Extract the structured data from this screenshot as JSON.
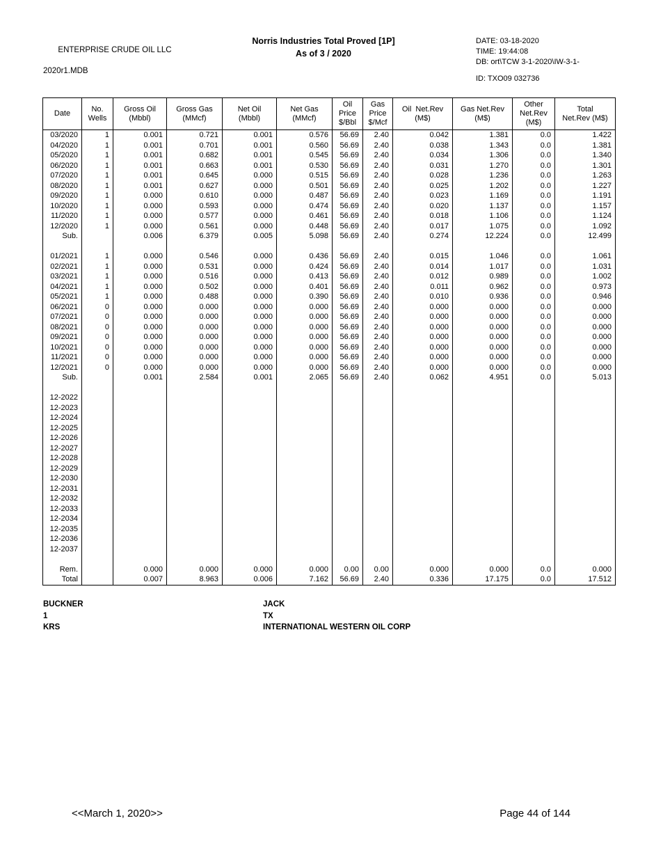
{
  "header": {
    "company": "ENTERPRISE CRUDE OIL LLC",
    "db_file": "2020r1.MDB",
    "title_line1": "Norris Industries Total Proved [1P]",
    "title_line2": "As of 3 / 2020",
    "meta_date": "DATE: 03-18-2020",
    "meta_time": "TIME: 19:44:08",
    "meta_db": "DB: ort\\TCW 3-1-2020\\IW-3-1-",
    "meta_id": "ID: TXO09 032736"
  },
  "table": {
    "headers": [
      [
        "Date"
      ],
      [
        "No.",
        "Wells"
      ],
      [
        "Gross Oil",
        "(Mbbl)"
      ],
      [
        "Gross Gas",
        "(MMcf)"
      ],
      [
        "Net Oil",
        "(Mbbl)"
      ],
      [
        "Net Gas",
        "(MMcf)"
      ],
      [
        "Oil",
        "Price",
        "$/Bbl"
      ],
      [
        "Gas",
        "Price",
        "$/Mcf"
      ],
      [
        "Oil  Net.Rev",
        "(M$)"
      ],
      [
        "Gas Net.Rev",
        "(M$)"
      ],
      [
        "Other",
        "Net.Rev",
        "(M$)"
      ],
      [
        "Total",
        "Net.Rev (M$)"
      ]
    ],
    "rows": [
      [
        "03/2020",
        "1",
        "0.001",
        "0.721",
        "0.001",
        "0.576",
        "56.69",
        "2.40",
        "0.042",
        "1.381",
        "0.0",
        "1.422"
      ],
      [
        "04/2020",
        "1",
        "0.001",
        "0.701",
        "0.001",
        "0.560",
        "56.69",
        "2.40",
        "0.038",
        "1.343",
        "0.0",
        "1.381"
      ],
      [
        "05/2020",
        "1",
        "0.001",
        "0.682",
        "0.001",
        "0.545",
        "56.69",
        "2.40",
        "0.034",
        "1.306",
        "0.0",
        "1.340"
      ],
      [
        "06/2020",
        "1",
        "0.001",
        "0.663",
        "0.001",
        "0.530",
        "56.69",
        "2.40",
        "0.031",
        "1.270",
        "0.0",
        "1.301"
      ],
      [
        "07/2020",
        "1",
        "0.001",
        "0.645",
        "0.000",
        "0.515",
        "56.69",
        "2.40",
        "0.028",
        "1.236",
        "0.0",
        "1.263"
      ],
      [
        "08/2020",
        "1",
        "0.001",
        "0.627",
        "0.000",
        "0.501",
        "56.69",
        "2.40",
        "0.025",
        "1.202",
        "0.0",
        "1.227"
      ],
      [
        "09/2020",
        "1",
        "0.000",
        "0.610",
        "0.000",
        "0.487",
        "56.69",
        "2.40",
        "0.023",
        "1.169",
        "0.0",
        "1.191"
      ],
      [
        "10/2020",
        "1",
        "0.000",
        "0.593",
        "0.000",
        "0.474",
        "56.69",
        "2.40",
        "0.020",
        "1.137",
        "0.0",
        "1.157"
      ],
      [
        "11/2020",
        "1",
        "0.000",
        "0.577",
        "0.000",
        "0.461",
        "56.69",
        "2.40",
        "0.018",
        "1.106",
        "0.0",
        "1.124"
      ],
      [
        "12/2020",
        "1",
        "0.000",
        "0.561",
        "0.000",
        "0.448",
        "56.69",
        "2.40",
        "0.017",
        "1.075",
        "0.0",
        "1.092"
      ],
      [
        "Sub.",
        "",
        "0.006",
        "6.379",
        "0.005",
        "5.098",
        "56.69",
        "2.40",
        "0.274",
        "12.224",
        "0.0",
        "12.499"
      ],
      [
        "",
        "",
        "",
        "",
        "",
        "",
        "",
        "",
        "",
        "",
        "",
        ""
      ],
      [
        "01/2021",
        "1",
        "0.000",
        "0.546",
        "0.000",
        "0.436",
        "56.69",
        "2.40",
        "0.015",
        "1.046",
        "0.0",
        "1.061"
      ],
      [
        "02/2021",
        "1",
        "0.000",
        "0.531",
        "0.000",
        "0.424",
        "56.69",
        "2.40",
        "0.014",
        "1.017",
        "0.0",
        "1.031"
      ],
      [
        "03/2021",
        "1",
        "0.000",
        "0.516",
        "0.000",
        "0.413",
        "56.69",
        "2.40",
        "0.012",
        "0.989",
        "0.0",
        "1.002"
      ],
      [
        "04/2021",
        "1",
        "0.000",
        "0.502",
        "0.000",
        "0.401",
        "56.69",
        "2.40",
        "0.011",
        "0.962",
        "0.0",
        "0.973"
      ],
      [
        "05/2021",
        "1",
        "0.000",
        "0.488",
        "0.000",
        "0.390",
        "56.69",
        "2.40",
        "0.010",
        "0.936",
        "0.0",
        "0.946"
      ],
      [
        "06/2021",
        "0",
        "0.000",
        "0.000",
        "0.000",
        "0.000",
        "56.69",
        "2.40",
        "0.000",
        "0.000",
        "0.0",
        "0.000"
      ],
      [
        "07/2021",
        "0",
        "0.000",
        "0.000",
        "0.000",
        "0.000",
        "56.69",
        "2.40",
        "0.000",
        "0.000",
        "0.0",
        "0.000"
      ],
      [
        "08/2021",
        "0",
        "0.000",
        "0.000",
        "0.000",
        "0.000",
        "56.69",
        "2.40",
        "0.000",
        "0.000",
        "0.0",
        "0.000"
      ],
      [
        "09/2021",
        "0",
        "0.000",
        "0.000",
        "0.000",
        "0.000",
        "56.69",
        "2.40",
        "0.000",
        "0.000",
        "0.0",
        "0.000"
      ],
      [
        "10/2021",
        "0",
        "0.000",
        "0.000",
        "0.000",
        "0.000",
        "56.69",
        "2.40",
        "0.000",
        "0.000",
        "0.0",
        "0.000"
      ],
      [
        "11/2021",
        "0",
        "0.000",
        "0.000",
        "0.000",
        "0.000",
        "56.69",
        "2.40",
        "0.000",
        "0.000",
        "0.0",
        "0.000"
      ],
      [
        "12/2021",
        "0",
        "0.000",
        "0.000",
        "0.000",
        "0.000",
        "56.69",
        "2.40",
        "0.000",
        "0.000",
        "0.0",
        "0.000"
      ],
      [
        "Sub.",
        "",
        "0.001",
        "2.584",
        "0.001",
        "2.065",
        "56.69",
        "2.40",
        "0.062",
        "4.951",
        "0.0",
        "5.013"
      ],
      [
        "",
        "",
        "",
        "",
        "",
        "",
        "",
        "",
        "",
        "",
        "",
        ""
      ],
      [
        "12-2022",
        "",
        "",
        "",
        "",
        "",
        "",
        "",
        "",
        "",
        "",
        ""
      ],
      [
        "12-2023",
        "",
        "",
        "",
        "",
        "",
        "",
        "",
        "",
        "",
        "",
        ""
      ],
      [
        "12-2024",
        "",
        "",
        "",
        "",
        "",
        "",
        "",
        "",
        "",
        "",
        ""
      ],
      [
        "12-2025",
        "",
        "",
        "",
        "",
        "",
        "",
        "",
        "",
        "",
        "",
        ""
      ],
      [
        "12-2026",
        "",
        "",
        "",
        "",
        "",
        "",
        "",
        "",
        "",
        "",
        ""
      ],
      [
        "12-2027",
        "",
        "",
        "",
        "",
        "",
        "",
        "",
        "",
        "",
        "",
        ""
      ],
      [
        "12-2028",
        "",
        "",
        "",
        "",
        "",
        "",
        "",
        "",
        "",
        "",
        ""
      ],
      [
        "12-2029",
        "",
        "",
        "",
        "",
        "",
        "",
        "",
        "",
        "",
        "",
        ""
      ],
      [
        "12-2030",
        "",
        "",
        "",
        "",
        "",
        "",
        "",
        "",
        "",
        "",
        ""
      ],
      [
        "12-2031",
        "",
        "",
        "",
        "",
        "",
        "",
        "",
        "",
        "",
        "",
        ""
      ],
      [
        "12-2032",
        "",
        "",
        "",
        "",
        "",
        "",
        "",
        "",
        "",
        "",
        ""
      ],
      [
        "12-2033",
        "",
        "",
        "",
        "",
        "",
        "",
        "",
        "",
        "",
        "",
        ""
      ],
      [
        "12-2034",
        "",
        "",
        "",
        "",
        "",
        "",
        "",
        "",
        "",
        "",
        ""
      ],
      [
        "12-2035",
        "",
        "",
        "",
        "",
        "",
        "",
        "",
        "",
        "",
        "",
        ""
      ],
      [
        "12-2036",
        "",
        "",
        "",
        "",
        "",
        "",
        "",
        "",
        "",
        "",
        ""
      ],
      [
        "12-2037",
        "",
        "",
        "",
        "",
        "",
        "",
        "",
        "",
        "",
        "",
        ""
      ],
      [
        "",
        "",
        "",
        "",
        "",
        "",
        "",
        "",
        "",
        "",
        "",
        ""
      ],
      [
        "Rem.",
        "",
        "0.000",
        "0.000",
        "0.000",
        "0.000",
        "0.00",
        "0.00",
        "0.000",
        "0.000",
        "0.0",
        "0.000"
      ],
      [
        "Total",
        "",
        "0.007",
        "8.963",
        "0.006",
        "7.162",
        "56.69",
        "2.40",
        "0.336",
        "17.175",
        "0.0",
        "17.512"
      ]
    ]
  },
  "footer": {
    "lease": [
      "BUCKNER",
      "1",
      "KRS"
    ],
    "location": [
      "JACK",
      "TX",
      "INTERNATIONAL WESTERN OIL CORP"
    ]
  },
  "bottom": {
    "date_marker": "<<March 1, 2020>>",
    "page_label": "Page 44 of 144"
  }
}
